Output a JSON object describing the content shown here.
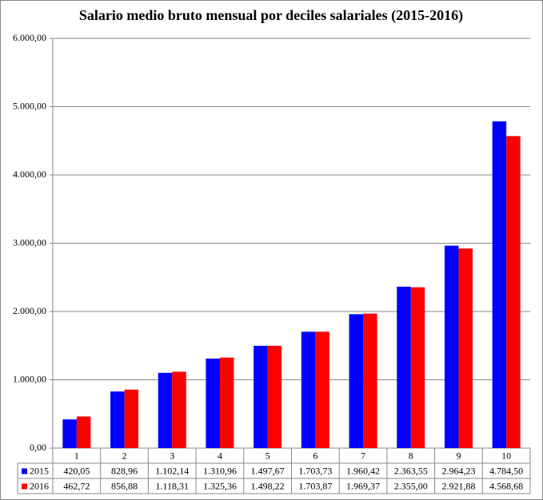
{
  "chart_data": {
    "type": "bar",
    "title": "Salario medio bruto mensual por deciles salariales (2015-2016)",
    "categories": [
      "1",
      "2",
      "3",
      "4",
      "5",
      "6",
      "7",
      "8",
      "9",
      "10"
    ],
    "series": [
      {
        "name": "2015",
        "color": "#0000ff",
        "values": [
          420.05,
          828.96,
          1102.14,
          1310.96,
          1497.67,
          1703.73,
          1960.42,
          2363.55,
          2964.23,
          4784.5
        ],
        "value_labels": [
          "420,05",
          "828,96",
          "1.102,14",
          "1.310,96",
          "1.497,67",
          "1.703,73",
          "1.960,42",
          "2.363,55",
          "2.964,23",
          "4.784,50"
        ]
      },
      {
        "name": "2016",
        "color": "#ff0000",
        "values": [
          462.72,
          856.88,
          1118.31,
          1325.36,
          1498.22,
          1703.87,
          1969.37,
          2355.0,
          2921.88,
          4568.68
        ],
        "value_labels": [
          "462,72",
          "856,88",
          "1.118,31",
          "1.325,36",
          "1.498,22",
          "1.703,87",
          "1.969,37",
          "2.355,00",
          "2.921,88",
          "4.568,68"
        ]
      }
    ],
    "ylim": [
      0,
      6000
    ],
    "yticks": [
      {
        "value": 0,
        "label": "0,00"
      },
      {
        "value": 1000,
        "label": "1.000,00"
      },
      {
        "value": 2000,
        "label": "2.000,00"
      },
      {
        "value": 3000,
        "label": "3.000,00"
      },
      {
        "value": 4000,
        "label": "4.000,00"
      },
      {
        "value": 5000,
        "label": "5.000,00"
      },
      {
        "value": 6000,
        "label": "6.000,00"
      }
    ],
    "grid": true
  }
}
